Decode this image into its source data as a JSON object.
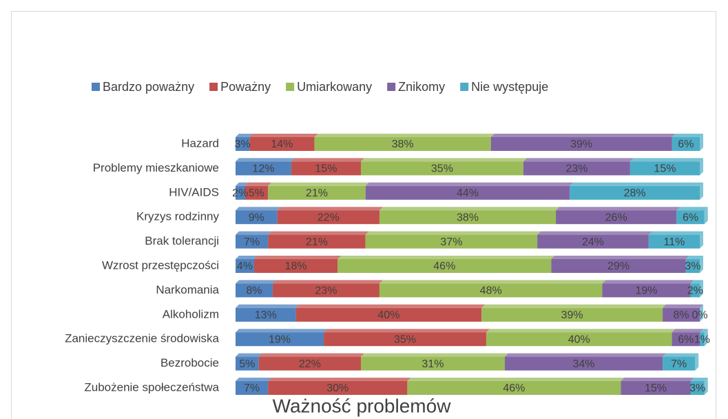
{
  "chart_data": {
    "type": "bar",
    "orientation": "horizontal",
    "stacked": true,
    "title": "Ważność problemów",
    "categories": [
      "Hazard",
      "Problemy mieszkaniowe",
      "HIV/AIDS",
      "Kryzys rodzinny",
      "Brak tolerancji",
      "Wzrost przestępczości",
      "Narkomania",
      "Alkoholizm",
      "Zanieczyszczenie środowiska",
      "Bezrobocie",
      "Zubożenie społeczeństwa"
    ],
    "series": [
      {
        "name": "Bardzo poważny",
        "color": "#4f81bd",
        "values": [
          3,
          12,
          2,
          9,
          7,
          4,
          8,
          13,
          19,
          5,
          7
        ],
        "value_labels": [
          "3%",
          "12%",
          "2%",
          "9%",
          "7%",
          "4%",
          "8%",
          "13%",
          "19%",
          "5%",
          "7%"
        ]
      },
      {
        "name": "Poważny",
        "color": "#c0504d",
        "values": [
          14,
          15,
          5,
          22,
          21,
          18,
          23,
          40,
          35,
          22,
          30
        ],
        "value_labels": [
          "14%",
          "15%",
          "5%",
          "22%",
          "21%",
          "18%",
          "23%",
          "40%",
          "35%",
          "22%",
          "30%"
        ]
      },
      {
        "name": "Umiarkowany",
        "color": "#9bbb59",
        "values": [
          38,
          35,
          21,
          38,
          37,
          46,
          48,
          39,
          40,
          31,
          46
        ],
        "value_labels": [
          "38%",
          "35%",
          "21%",
          "38%",
          "37%",
          "46%",
          "48%",
          "39%",
          "40%",
          "31%",
          "46%"
        ]
      },
      {
        "name": "Znikomy",
        "color": "#8064a2",
        "values": [
          39,
          23,
          44,
          26,
          24,
          29,
          19,
          8,
          6,
          34,
          15
        ],
        "value_labels": [
          "39%",
          "23%",
          "44%",
          "26%",
          "24%",
          "29%",
          "19%",
          "8%",
          "6%",
          "34%",
          "15%"
        ]
      },
      {
        "name": "Nie występuje",
        "color": "#4bacc6",
        "values": [
          6,
          15,
          28,
          6,
          11,
          3,
          2,
          0,
          1,
          7,
          3
        ],
        "value_labels": [
          "6%",
          "15%",
          "28%",
          "6%",
          "11%",
          "3%",
          "2%",
          "0%",
          "1%",
          "7%",
          "3%"
        ]
      }
    ],
    "xlim": [
      0,
      100
    ],
    "legend": "top"
  }
}
